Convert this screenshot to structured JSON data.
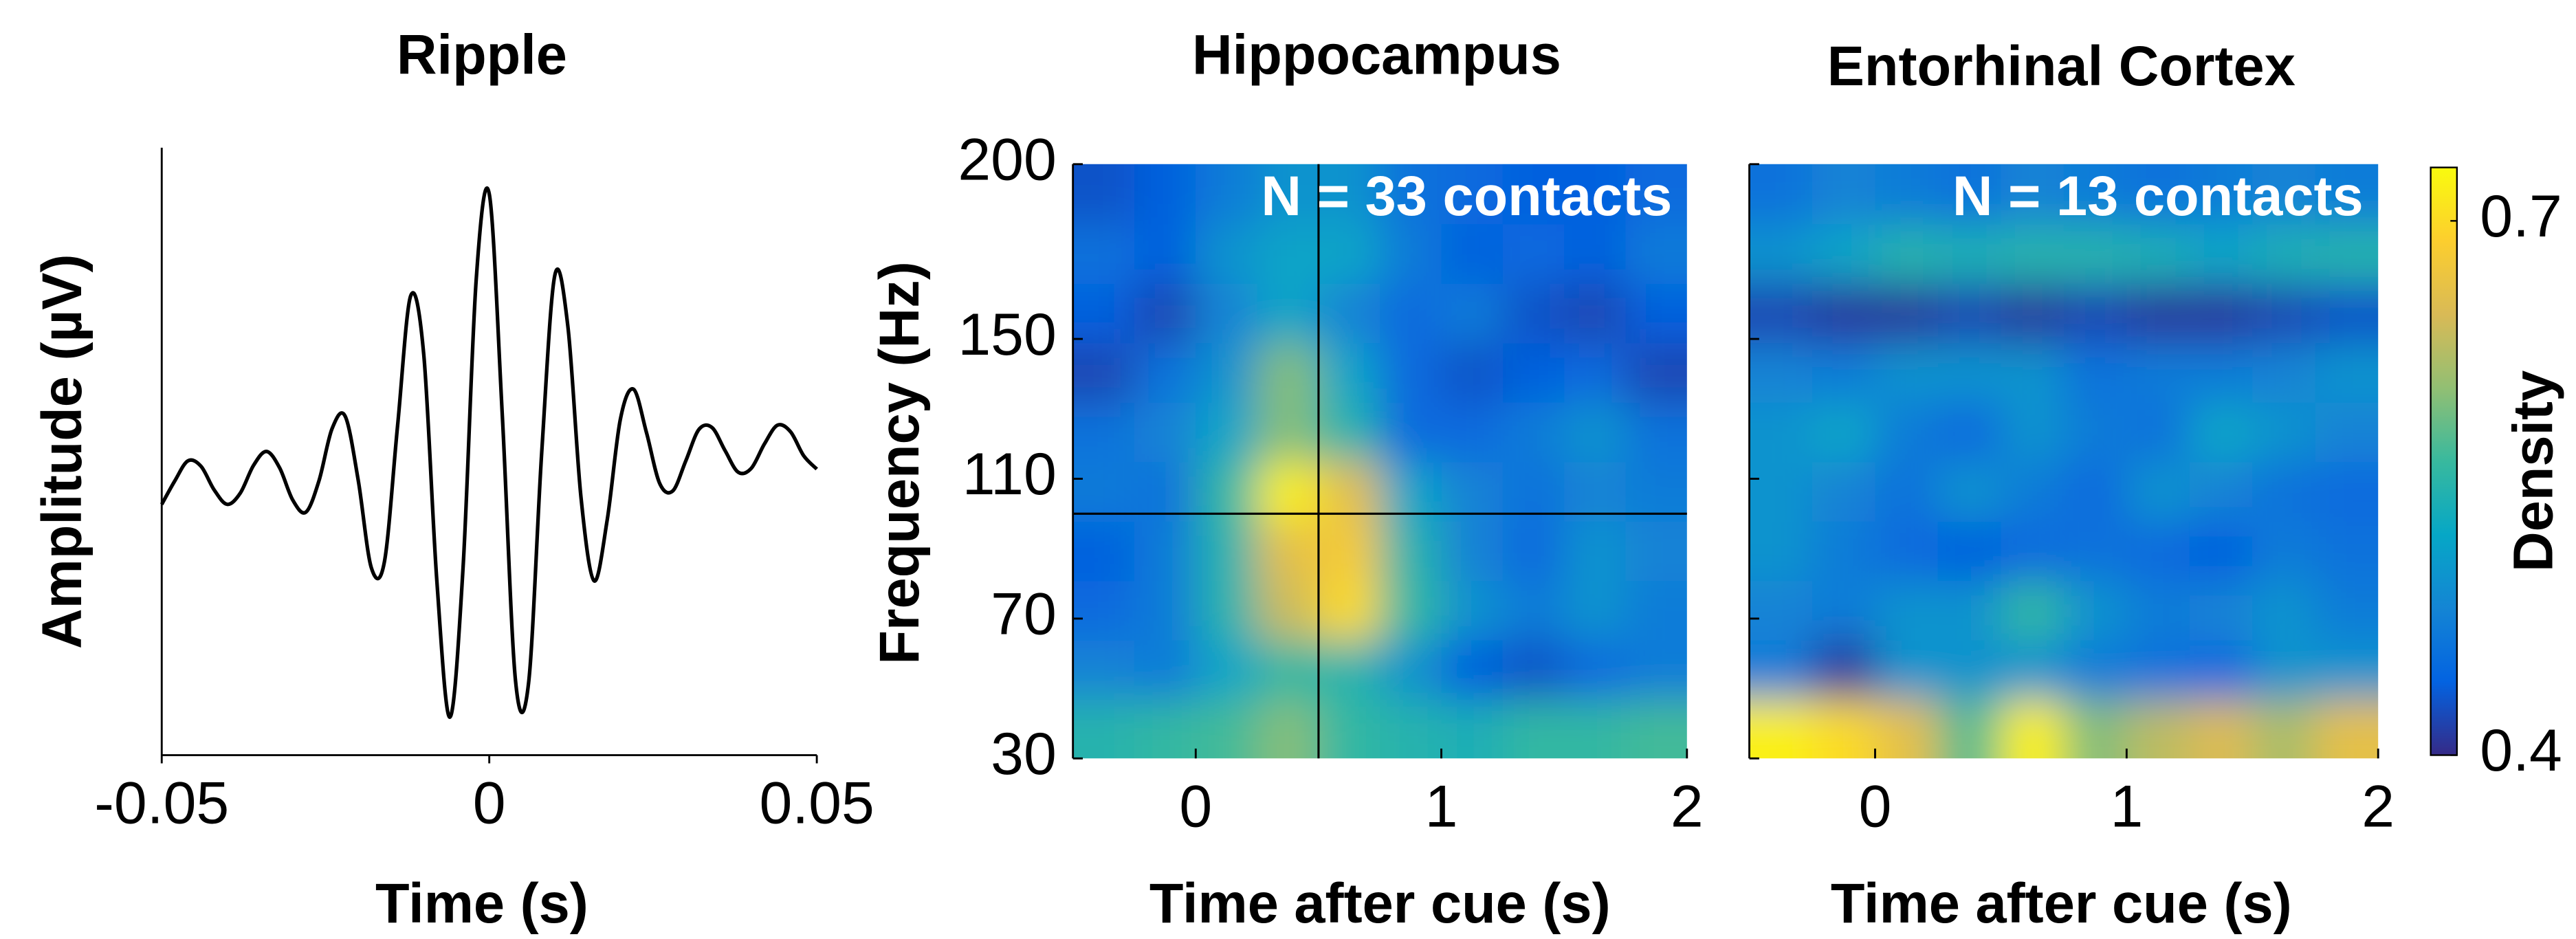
{
  "chart_data": [
    {
      "type": "line",
      "title": "Ripple",
      "xlabel": "Time (s)",
      "ylabel": "Amplitude (µV)",
      "xlim": [
        -0.05,
        0.05
      ],
      "xticks": [
        -0.05,
        0,
        0.05
      ],
      "ylim": [
        -7.5,
        8
      ],
      "color": "#000000",
      "x": [
        -0.05,
        -0.048,
        -0.046,
        -0.044,
        -0.042,
        -0.04,
        -0.038,
        -0.036,
        -0.034,
        -0.032,
        -0.03,
        -0.028,
        -0.026,
        -0.024,
        -0.022,
        -0.02,
        -0.018,
        -0.016,
        -0.014,
        -0.012,
        -0.01,
        -0.008,
        -0.006,
        -0.004,
        -0.002,
        0,
        0.002,
        0.004,
        0.006,
        0.008,
        0.01,
        0.012,
        0.014,
        0.016,
        0.018,
        0.02,
        0.022,
        0.024,
        0.026,
        0.028,
        0.03,
        0.032,
        0.034,
        0.036,
        0.038,
        0.04,
        0.042,
        0.044,
        0.046,
        0.048,
        0.05
      ],
      "values": [
        -1.1,
        -0.5,
        0.01,
        -0.13,
        -0.73,
        -1.1,
        -0.81,
        -0.11,
        0.25,
        -0.17,
        -0.99,
        -1.3,
        -0.5,
        0.83,
        1.15,
        -0.49,
        -2.72,
        -2.56,
        0.9,
        4.22,
        2.72,
        -3.06,
        -6.53,
        -2.71,
        4.62,
        6.82,
        1.14,
        -5.59,
        -5.66,
        0.21,
        4.74,
        3.44,
        -0.92,
        -3.05,
        -1.5,
        1.06,
        1.84,
        0.73,
        -0.56,
        -0.76,
        0.01,
        0.81,
        0.86,
        0.27,
        -0.28,
        -0.18,
        0.44,
        0.92,
        0.75,
        0.14,
        -0.2
      ]
    },
    {
      "type": "heatmap",
      "title": "Hippocampus",
      "xlabel": "Time after cue (s)",
      "ylabel": "Frequency (Hz)",
      "annotation": "N = 33 contacts",
      "colormap": "parula",
      "clim": [
        0.4,
        0.73
      ],
      "xlim": [
        -0.5,
        2
      ],
      "xticks": [
        0,
        1,
        2
      ],
      "ylim": [
        30,
        200
      ],
      "yticks": [
        30,
        70,
        110,
        150,
        200
      ],
      "crosshair": {
        "x": 0.5,
        "y": 100
      },
      "x": [
        -0.375,
        -0.125,
        0.125,
        0.375,
        0.625,
        0.875,
        1.125,
        1.375,
        1.625,
        1.875
      ],
      "y": [
        38.5,
        55.5,
        72.5,
        89.5,
        106.5,
        123.5,
        140.5,
        157.5,
        174.5,
        191.5
      ],
      "z": [
        [
          0.55,
          0.56,
          0.57,
          0.6,
          0.56,
          0.55,
          0.54,
          0.56,
          0.56,
          0.57
        ],
        [
          0.48,
          0.47,
          0.52,
          0.56,
          0.55,
          0.5,
          0.44,
          0.43,
          0.45,
          0.47
        ],
        [
          0.45,
          0.47,
          0.55,
          0.64,
          0.7,
          0.56,
          0.5,
          0.47,
          0.5,
          0.47
        ],
        [
          0.44,
          0.47,
          0.55,
          0.66,
          0.68,
          0.55,
          0.48,
          0.45,
          0.5,
          0.48
        ],
        [
          0.47,
          0.46,
          0.56,
          0.72,
          0.66,
          0.52,
          0.48,
          0.46,
          0.48,
          0.47
        ],
        [
          0.46,
          0.48,
          0.52,
          0.6,
          0.55,
          0.45,
          0.45,
          0.47,
          0.5,
          0.46
        ],
        [
          0.42,
          0.46,
          0.5,
          0.6,
          0.52,
          0.45,
          0.43,
          0.44,
          0.45,
          0.42
        ],
        [
          0.44,
          0.42,
          0.48,
          0.52,
          0.48,
          0.45,
          0.47,
          0.43,
          0.42,
          0.44
        ],
        [
          0.46,
          0.44,
          0.5,
          0.52,
          0.52,
          0.47,
          0.44,
          0.45,
          0.44,
          0.47
        ],
        [
          0.43,
          0.44,
          0.47,
          0.5,
          0.5,
          0.46,
          0.45,
          0.44,
          0.44,
          0.45
        ]
      ]
    },
    {
      "type": "heatmap",
      "title": "Entorhinal Cortex",
      "xlabel": "Time after cue (s)",
      "annotation": "N = 13 contacts",
      "colormap": "parula",
      "clim": [
        0.4,
        0.73
      ],
      "xlim": [
        -0.5,
        2
      ],
      "xticks": [
        0,
        1,
        2
      ],
      "ylim": [
        30,
        200
      ],
      "yticks": [
        30,
        70,
        110,
        150,
        200
      ],
      "show_ytick_labels": false,
      "x": [
        -0.375,
        -0.125,
        0.125,
        0.375,
        0.625,
        0.875,
        1.125,
        1.375,
        1.625,
        1.875
      ],
      "y": [
        38.5,
        55.5,
        72.5,
        89.5,
        106.5,
        123.5,
        140.5,
        157.5,
        174.5,
        191.5
      ],
      "z": [
        [
          0.72,
          0.7,
          0.66,
          0.58,
          0.72,
          0.6,
          0.63,
          0.65,
          0.62,
          0.66
        ],
        [
          0.47,
          0.41,
          0.5,
          0.5,
          0.5,
          0.47,
          0.46,
          0.45,
          0.5,
          0.5
        ],
        [
          0.48,
          0.47,
          0.5,
          0.5,
          0.56,
          0.5,
          0.47,
          0.48,
          0.5,
          0.47
        ],
        [
          0.5,
          0.47,
          0.45,
          0.44,
          0.45,
          0.46,
          0.45,
          0.44,
          0.47,
          0.46
        ],
        [
          0.5,
          0.48,
          0.46,
          0.5,
          0.47,
          0.45,
          0.5,
          0.48,
          0.46,
          0.45
        ],
        [
          0.5,
          0.52,
          0.47,
          0.45,
          0.5,
          0.47,
          0.46,
          0.52,
          0.5,
          0.48
        ],
        [
          0.48,
          0.47,
          0.5,
          0.5,
          0.5,
          0.46,
          0.47,
          0.47,
          0.48,
          0.5
        ],
        [
          0.42,
          0.41,
          0.41,
          0.42,
          0.41,
          0.42,
          0.41,
          0.41,
          0.42,
          0.43
        ],
        [
          0.5,
          0.52,
          0.55,
          0.54,
          0.55,
          0.55,
          0.54,
          0.52,
          0.54,
          0.55
        ],
        [
          0.46,
          0.48,
          0.47,
          0.46,
          0.48,
          0.47,
          0.46,
          0.47,
          0.48,
          0.47
        ]
      ],
      "colorbar": {
        "label": "Density",
        "ticks": [
          0.4,
          0.7
        ]
      }
    }
  ]
}
